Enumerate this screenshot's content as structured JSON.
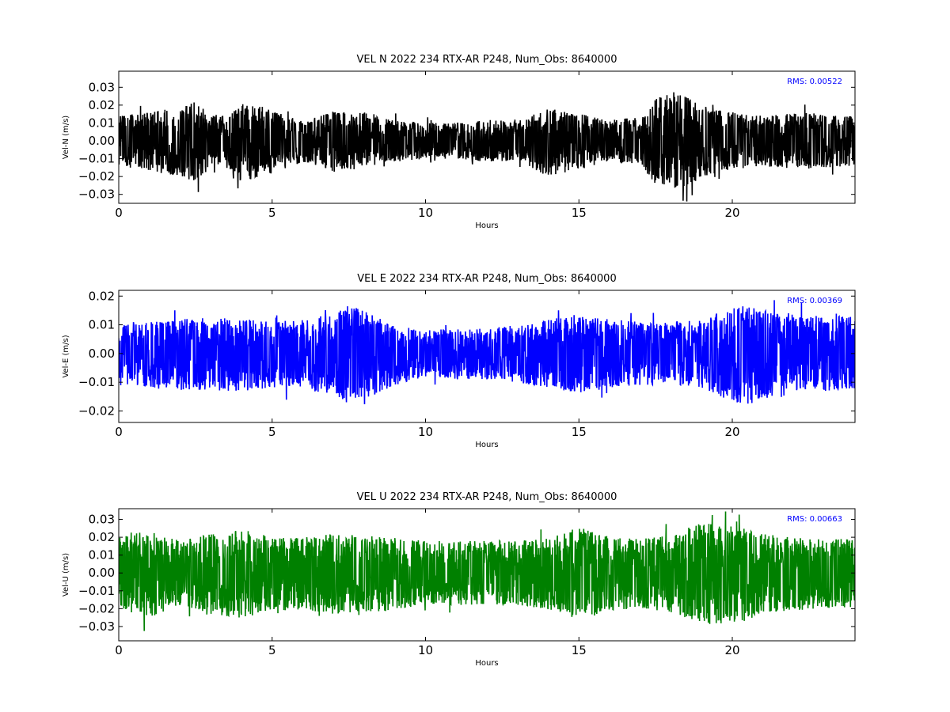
{
  "chart_data": [
    {
      "type": "line",
      "title": "VEL N 2022 234 RTX-AR  P248, Num_Obs: 8640000",
      "xlabel": "Hours",
      "ylabel": "Vel-N (m/s)",
      "xlim": [
        0,
        24
      ],
      "ylim": [
        -0.035,
        0.039
      ],
      "x_ticks": [
        0,
        5,
        10,
        15,
        20
      ],
      "x_tick_labels": [
        "0",
        "5",
        "10",
        "15",
        "20"
      ],
      "y_ticks": [
        -0.03,
        -0.02,
        -0.01,
        0.0,
        0.01,
        0.02,
        0.03
      ],
      "y_tick_labels": [
        "−0.03",
        "−0.02",
        "−0.01",
        "0.00",
        "0.01",
        "0.02",
        "0.03"
      ],
      "color": "#000000",
      "rms_text": "RMS:  0.00522",
      "rms_color": "#0000ff",
      "grid": false,
      "envelope": {
        "description_units": "hours vs m/s (upper/lower extent of noise band)",
        "x": [
          0,
          1,
          2,
          2.5,
          3,
          3.5,
          4,
          5,
          6,
          7,
          8,
          8.5,
          9,
          10,
          11,
          12,
          13,
          14,
          15,
          16,
          17,
          17.5,
          18,
          18.5,
          19,
          20,
          21,
          22,
          23,
          24
        ],
        "upper": [
          0.014,
          0.017,
          0.018,
          0.022,
          0.015,
          0.014,
          0.022,
          0.017,
          0.011,
          0.017,
          0.016,
          0.013,
          0.012,
          0.01,
          0.01,
          0.012,
          0.011,
          0.019,
          0.015,
          0.012,
          0.013,
          0.024,
          0.028,
          0.026,
          0.019,
          0.016,
          0.014,
          0.016,
          0.015,
          0.014
        ],
        "lower": [
          -0.014,
          -0.017,
          -0.02,
          -0.023,
          -0.015,
          -0.015,
          -0.023,
          -0.018,
          -0.012,
          -0.017,
          -0.016,
          -0.013,
          -0.012,
          -0.01,
          -0.01,
          -0.012,
          -0.011,
          -0.02,
          -0.016,
          -0.012,
          -0.013,
          -0.026,
          -0.029,
          -0.027,
          -0.02,
          -0.016,
          -0.014,
          -0.016,
          -0.015,
          -0.014
        ]
      }
    },
    {
      "type": "line",
      "title": "VEL E 2022 234 RTX-AR  P248, Num_Obs: 8640000",
      "xlabel": "Hours",
      "ylabel": "Vel-E (m/s)",
      "xlim": [
        0,
        24
      ],
      "ylim": [
        -0.024,
        0.022
      ],
      "x_ticks": [
        0,
        5,
        10,
        15,
        20
      ],
      "x_tick_labels": [
        "0",
        "5",
        "10",
        "15",
        "20"
      ],
      "y_ticks": [
        -0.02,
        -0.01,
        0.0,
        0.01,
        0.02
      ],
      "y_tick_labels": [
        "−0.02",
        "−0.01",
        "0.00",
        "0.01",
        "0.02"
      ],
      "color": "#0000ff",
      "rms_text": "RMS:  0.00369",
      "rms_color": "#0000ff",
      "grid": false,
      "envelope": {
        "description_units": "hours vs m/s (upper/lower extent of noise band)",
        "x": [
          0,
          1,
          2,
          3,
          4,
          5,
          6,
          7,
          7.5,
          8,
          9,
          10,
          11,
          12,
          13,
          14,
          15,
          16,
          17,
          18,
          19,
          20,
          20.5,
          21,
          22,
          23,
          24
        ],
        "upper": [
          0.011,
          0.011,
          0.012,
          0.013,
          0.012,
          0.011,
          0.012,
          0.014,
          0.017,
          0.015,
          0.01,
          0.008,
          0.009,
          0.009,
          0.01,
          0.012,
          0.013,
          0.012,
          0.011,
          0.011,
          0.012,
          0.016,
          0.017,
          0.015,
          0.014,
          0.013,
          0.013
        ],
        "lower": [
          -0.011,
          -0.012,
          -0.013,
          -0.013,
          -0.013,
          -0.012,
          -0.012,
          -0.015,
          -0.018,
          -0.016,
          -0.011,
          -0.008,
          -0.009,
          -0.009,
          -0.01,
          -0.012,
          -0.014,
          -0.012,
          -0.011,
          -0.011,
          -0.012,
          -0.017,
          -0.018,
          -0.016,
          -0.014,
          -0.013,
          -0.013
        ]
      }
    },
    {
      "type": "line",
      "title": "VEL U 2022 234 RTX-AR  P248, Num_Obs: 8640000",
      "xlabel": "Hours",
      "ylabel": "Vel-U (m/s)",
      "xlim": [
        0,
        24
      ],
      "ylim": [
        -0.038,
        0.036
      ],
      "x_ticks": [
        0,
        5,
        10,
        15,
        20
      ],
      "x_tick_labels": [
        "0",
        "5",
        "10",
        "15",
        "20"
      ],
      "y_ticks": [
        -0.03,
        -0.02,
        -0.01,
        0.0,
        0.01,
        0.02,
        0.03
      ],
      "y_tick_labels": [
        "−0.03",
        "−0.02",
        "−0.01",
        "0.00",
        "0.01",
        "0.02",
        "0.03"
      ],
      "color": "#008000",
      "rms_text": "RMS:  0.00663",
      "rms_color": "#0000ff",
      "grid": false,
      "envelope": {
        "description_units": "hours vs m/s (upper/lower extent of noise band)",
        "x": [
          0,
          1,
          2,
          3,
          4,
          5,
          6,
          7,
          8,
          9,
          10,
          11,
          12,
          13,
          14,
          15,
          16,
          17,
          18,
          19,
          20,
          20.5,
          21,
          22,
          23,
          24
        ],
        "upper": [
          0.02,
          0.024,
          0.018,
          0.022,
          0.025,
          0.02,
          0.02,
          0.022,
          0.021,
          0.02,
          0.018,
          0.018,
          0.018,
          0.018,
          0.02,
          0.026,
          0.02,
          0.019,
          0.021,
          0.028,
          0.026,
          0.025,
          0.022,
          0.02,
          0.019,
          0.019
        ],
        "lower": [
          -0.02,
          -0.025,
          -0.018,
          -0.023,
          -0.026,
          -0.021,
          -0.021,
          -0.023,
          -0.022,
          -0.021,
          -0.018,
          -0.018,
          -0.018,
          -0.018,
          -0.021,
          -0.027,
          -0.021,
          -0.02,
          -0.022,
          -0.029,
          -0.028,
          -0.027,
          -0.023,
          -0.021,
          -0.02,
          -0.019
        ]
      }
    }
  ]
}
